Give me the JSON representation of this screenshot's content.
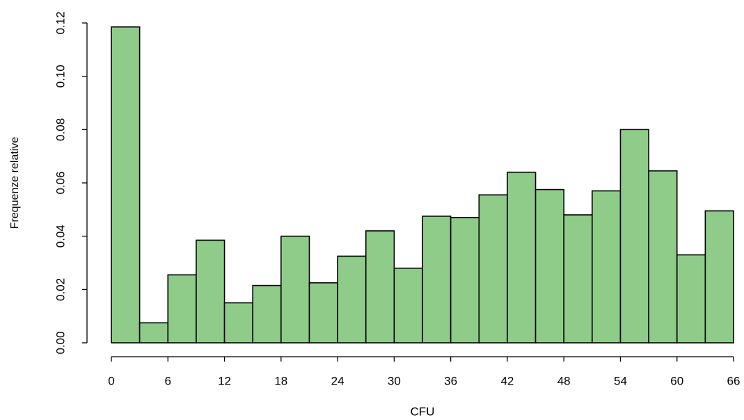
{
  "chart_data": {
    "type": "histogram",
    "xlabel": "CFU",
    "ylabel": "Frequenze relative",
    "bins": [
      0,
      3,
      6,
      9,
      12,
      15,
      18,
      21,
      24,
      27,
      30,
      33,
      36,
      39,
      42,
      45,
      48,
      51,
      54,
      57,
      60,
      63,
      66
    ],
    "values": [
      0.1185,
      0.0075,
      0.0255,
      0.0385,
      0.015,
      0.0215,
      0.04,
      0.0225,
      0.0325,
      0.042,
      0.028,
      0.0475,
      0.047,
      0.0555,
      0.064,
      0.0575,
      0.048,
      0.057,
      0.08,
      0.0645,
      0.033,
      0.0495
    ],
    "color": "#8fcc8a",
    "xlim": [
      0,
      66
    ],
    "xticks": [
      0,
      6,
      12,
      18,
      24,
      30,
      36,
      42,
      48,
      54,
      60,
      66
    ],
    "ylim": [
      0,
      0.12
    ],
    "yticks": [
      {
        "value": 0,
        "label": "0.00"
      },
      {
        "value": 0.02,
        "label": "0.02"
      },
      {
        "value": 0.04,
        "label": "0.04"
      },
      {
        "value": 0.06,
        "label": "0.06"
      },
      {
        "value": 0.08,
        "label": "0.08"
      },
      {
        "value": 0.1,
        "label": "0.10"
      },
      {
        "value": 0.12,
        "label": "0.12"
      }
    ],
    "grid": false
  }
}
